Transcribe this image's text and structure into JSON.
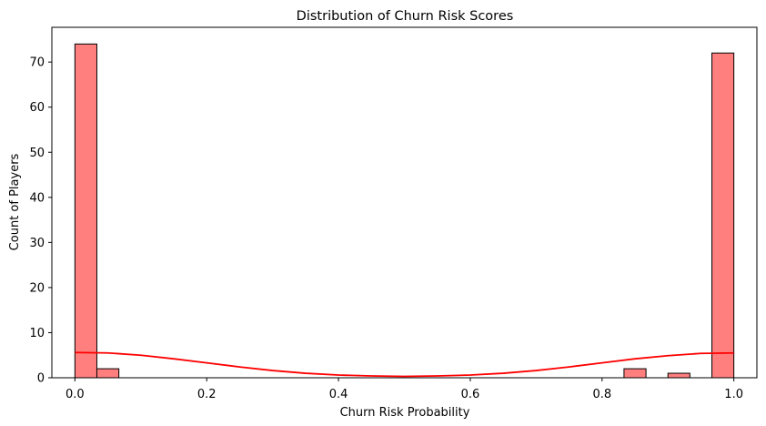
{
  "chart_data": {
    "type": "histogram",
    "title": "Distribution of Churn Risk Scores",
    "xlabel": "Churn Risk Probability",
    "ylabel": "Count of Players",
    "xlim": [
      -0.035,
      1.035
    ],
    "ylim": [
      0,
      77.7
    ],
    "xticks": [
      "0.0",
      "0.2",
      "0.4",
      "0.6",
      "0.8",
      "1.0"
    ],
    "xtick_values": [
      0.0,
      0.2,
      0.4,
      0.6,
      0.8,
      1.0
    ],
    "yticks": [
      "0",
      "10",
      "20",
      "30",
      "40",
      "50",
      "60",
      "70"
    ],
    "ytick_values": [
      0,
      10,
      20,
      30,
      40,
      50,
      60,
      70
    ],
    "grid": false,
    "bins": [
      {
        "x0": 0.0,
        "x1": 0.0333,
        "count": 74
      },
      {
        "x0": 0.0333,
        "x1": 0.0667,
        "count": 2
      },
      {
        "x0": 0.8333,
        "x1": 0.8667,
        "count": 2
      },
      {
        "x0": 0.9,
        "x1": 0.9333,
        "count": 1
      },
      {
        "x0": 0.9667,
        "x1": 1.0,
        "count": 72
      }
    ],
    "kde": {
      "x": [
        0.0,
        0.05,
        0.1,
        0.15,
        0.2,
        0.25,
        0.3,
        0.35,
        0.4,
        0.45,
        0.5,
        0.55,
        0.6,
        0.65,
        0.7,
        0.75,
        0.8,
        0.85,
        0.9,
        0.95,
        1.0
      ],
      "y": [
        5.6,
        5.5,
        5.0,
        4.2,
        3.3,
        2.4,
        1.6,
        1.0,
        0.6,
        0.4,
        0.3,
        0.4,
        0.6,
        1.0,
        1.6,
        2.4,
        3.3,
        4.2,
        4.9,
        5.4,
        5.5
      ]
    },
    "colors": {
      "bar_fill": "#ff7f7f",
      "bar_edge": "#000000",
      "kde_line": "#ff0000"
    }
  }
}
